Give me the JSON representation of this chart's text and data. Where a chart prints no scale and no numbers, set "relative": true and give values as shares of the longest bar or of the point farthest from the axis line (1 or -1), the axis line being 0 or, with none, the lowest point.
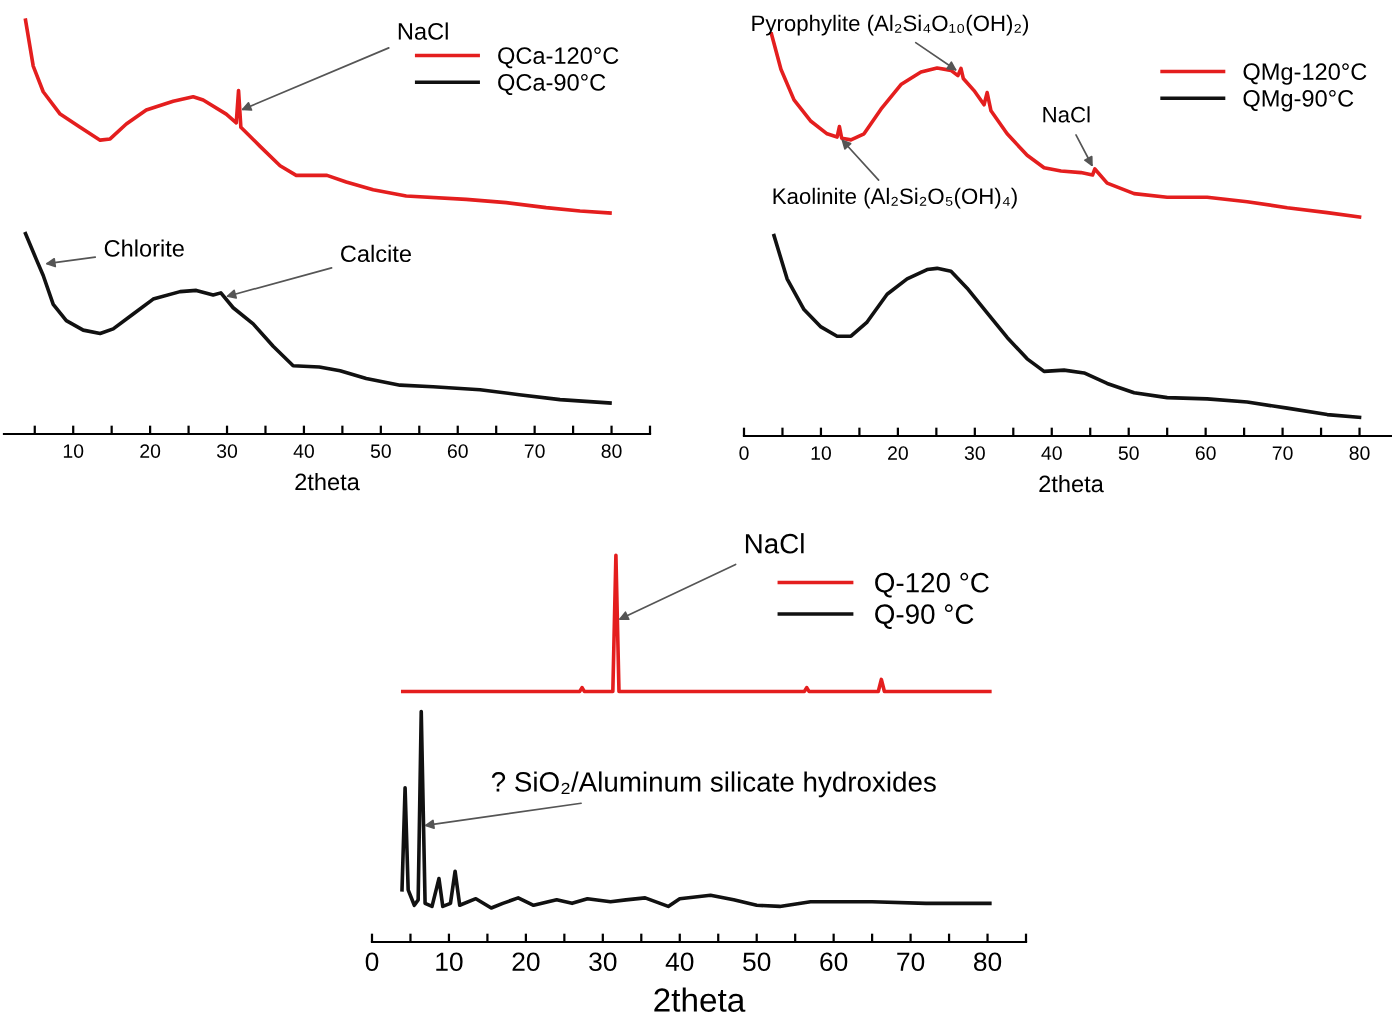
{
  "chart_data": [
    {
      "type": "line",
      "relative": true,
      "xlabel": "2theta",
      "tick_labels": "x",
      "legend": "top right",
      "grid": false,
      "xlim": [
        1,
        85
      ],
      "xticks": [
        {
          "value": 5,
          "label": null
        },
        10,
        {
          "value": 15,
          "label": null
        },
        20,
        {
          "value": 25,
          "label": null
        },
        30,
        {
          "value": 35,
          "label": null
        },
        40,
        {
          "value": 45,
          "label": null
        },
        50,
        {
          "value": 55,
          "label": null
        },
        60,
        {
          "value": 65,
          "label": null
        },
        70,
        {
          "value": 75,
          "label": null
        },
        80,
        {
          "value": 85,
          "label": null
        }
      ],
      "series": [
        {
          "name": "QCa-120°C",
          "color": "#e41e1e",
          "x": [
            3.8,
            4.8,
            6.1,
            8.3,
            10.9,
            13.5,
            14.8,
            16.9,
            19.5,
            23,
            25.6,
            26.9,
            29.9,
            31.2,
            31.5,
            31.8,
            34.3,
            36.9,
            39,
            43,
            45.5,
            49,
            53.3,
            61.1,
            66.3,
            71.5,
            75.9,
            79.8
          ],
          "values": [
            1.0,
            0.889,
            0.827,
            0.773,
            0.741,
            0.71,
            0.713,
            0.749,
            0.783,
            0.804,
            0.815,
            0.807,
            0.773,
            0.752,
            0.83,
            0.741,
            0.695,
            0.648,
            0.625,
            0.625,
            0.609,
            0.59,
            0.575,
            0.567,
            0.559,
            0.547,
            0.539,
            0.534
          ]
        },
        {
          "name": "QCa-90°C",
          "color": "#111111",
          "x": [
            3.8,
            5.2,
            6.1,
            7.4,
            9.1,
            11.3,
            13.5,
            15.2,
            17.8,
            20.4,
            23.9,
            26,
            28.2,
            29.2,
            30.8,
            33.4,
            36,
            38.6,
            42,
            44.7,
            48.1,
            52.5,
            56.8,
            62.9,
            68,
            73.3,
            79.8
          ],
          "values": [
            0.484,
            0.422,
            0.383,
            0.313,
            0.274,
            0.251,
            0.243,
            0.254,
            0.29,
            0.326,
            0.344,
            0.347,
            0.336,
            0.341,
            0.305,
            0.266,
            0.212,
            0.165,
            0.162,
            0.153,
            0.134,
            0.118,
            0.114,
            0.107,
            0.095,
            0.083,
            0.075
          ]
        }
      ],
      "annotations": [
        {
          "text": "NaCl",
          "x": 31.5,
          "y": 0.78
        },
        {
          "text": "Chlorite",
          "x": 6,
          "y": 0.41
        },
        {
          "text": "Calcite",
          "x": 29.5,
          "y": 0.33
        }
      ]
    },
    {
      "type": "line",
      "relative": true,
      "xlabel": "2theta",
      "tick_labels": "x",
      "legend": "top right",
      "grid": false,
      "xlim": [
        0,
        85
      ],
      "xticks": [
        0,
        {
          "value": 5,
          "label": null
        },
        10,
        {
          "value": 15,
          "label": null
        },
        20,
        {
          "value": 25,
          "label": null
        },
        30,
        {
          "value": 35,
          "label": null
        },
        40,
        {
          "value": 45,
          "label": null
        },
        50,
        {
          "value": 55,
          "label": null
        },
        60,
        {
          "value": 65,
          "label": null
        },
        70,
        {
          "value": 75,
          "label": null
        },
        80,
        {
          "value": 85,
          "label": null
        }
      ],
      "series": [
        {
          "name": "QMg-120°C",
          "color": "#e41e1e",
          "x": [
            3.5,
            4.8,
            6.5,
            8.7,
            10.8,
            12.1,
            12.4,
            12.7,
            13.9,
            15.6,
            17.8,
            20.4,
            23,
            25.1,
            26.9,
            27.8,
            28.2,
            28.5,
            29.9,
            31.2,
            31.6,
            32.1,
            34.2,
            36.8,
            39,
            41.2,
            43.8,
            45.3,
            45.6,
            47.2,
            50.7,
            55,
            60.2,
            65.4,
            70.6,
            75.8,
            80
          ],
          "values": [
            1.0,
            0.908,
            0.832,
            0.779,
            0.748,
            0.74,
            0.766,
            0.737,
            0.733,
            0.748,
            0.809,
            0.87,
            0.901,
            0.911,
            0.905,
            0.892,
            0.91,
            0.885,
            0.855,
            0.82,
            0.85,
            0.805,
            0.748,
            0.695,
            0.664,
            0.656,
            0.652,
            0.646,
            0.661,
            0.626,
            0.6,
            0.591,
            0.591,
            0.58,
            0.565,
            0.553,
            0.542
          ]
        },
        {
          "name": "QMg-90°C",
          "color": "#111111",
          "x": [
            3.9,
            5.6,
            7.8,
            10,
            12.1,
            13.9,
            16,
            18.6,
            21.2,
            23.8,
            25.1,
            26.9,
            29,
            31.6,
            34.2,
            36.8,
            39,
            41.6,
            44.2,
            47.2,
            50.7,
            55,
            60.2,
            65.4,
            70.6,
            75.8,
            80
          ],
          "values": [
            0.496,
            0.389,
            0.313,
            0.27,
            0.247,
            0.247,
            0.282,
            0.351,
            0.389,
            0.412,
            0.415,
            0.408,
            0.366,
            0.305,
            0.244,
            0.191,
            0.16,
            0.163,
            0.156,
            0.13,
            0.107,
            0.095,
            0.092,
            0.084,
            0.069,
            0.053,
            0.046
          ]
        }
      ],
      "annotations": [
        {
          "text": "Pyrophylite (Al₂Si₄O₁₀(OH)₂)",
          "x": 28,
          "y": 0.9
        },
        {
          "text": "Kaolinite (Al₂Si₂O₅(OH)₄)",
          "x": 12.4,
          "y": 0.74
        },
        {
          "text": "NaCl",
          "x": 45.5,
          "y": 0.66
        }
      ]
    },
    {
      "type": "line",
      "relative": true,
      "xlabel": "2theta",
      "tick_labels": "x",
      "legend": "top right",
      "grid": false,
      "xlim": [
        0,
        85
      ],
      "xticks": [
        0,
        {
          "value": 5,
          "label": null
        },
        10,
        {
          "value": 15,
          "label": null
        },
        20,
        {
          "value": 25,
          "label": null
        },
        30,
        {
          "value": 35,
          "label": null
        },
        40,
        {
          "value": 45,
          "label": null
        },
        50,
        {
          "value": 55,
          "label": null
        },
        60,
        {
          "value": 65,
          "label": null
        },
        70,
        {
          "value": 75,
          "label": null
        },
        80,
        {
          "value": 85,
          "label": null
        }
      ],
      "series": [
        {
          "name": "Q-120 °C",
          "color": "#e41e1e",
          "x": [
            4,
            27,
            27.3,
            27.6,
            31.3,
            31.7,
            32.1,
            56.2,
            56.5,
            56.8,
            65.8,
            66.2,
            66.6,
            80.3
          ],
          "values": [
            0.648,
            0.648,
            0.658,
            0.648,
            0.648,
            1.0,
            0.648,
            0.648,
            0.658,
            0.648,
            0.648,
            0.679,
            0.648,
            0.648
          ]
        },
        {
          "name": "Q-90 °C",
          "color": "#111111",
          "x": [
            3.9,
            4.3,
            4.7,
            5.5,
            6.0,
            6.4,
            6.9,
            7.8,
            8.7,
            9.2,
            10.2,
            10.8,
            11.4,
            13.5,
            15.5,
            17,
            19,
            21,
            24,
            26,
            28,
            31,
            33,
            35.5,
            38.5,
            40,
            44,
            47,
            50,
            53,
            57,
            65,
            72,
            80.3
          ],
          "values": [
            0.135,
            0.399,
            0.135,
            0.095,
            0.109,
            0.596,
            0.1,
            0.092,
            0.164,
            0.092,
            0.1,
            0.183,
            0.095,
            0.112,
            0.088,
            0.1,
            0.114,
            0.095,
            0.109,
            0.1,
            0.112,
            0.104,
            0.109,
            0.114,
            0.092,
            0.112,
            0.121,
            0.109,
            0.095,
            0.092,
            0.104,
            0.104,
            0.1,
            0.1
          ]
        }
      ],
      "annotations": [
        {
          "text": "NaCl",
          "x": 31.7,
          "y": 0.83
        },
        {
          "text": "? SiO₂/Aluminum silicate hydroxides",
          "x": 6.4,
          "y": 0.3
        }
      ]
    }
  ]
}
